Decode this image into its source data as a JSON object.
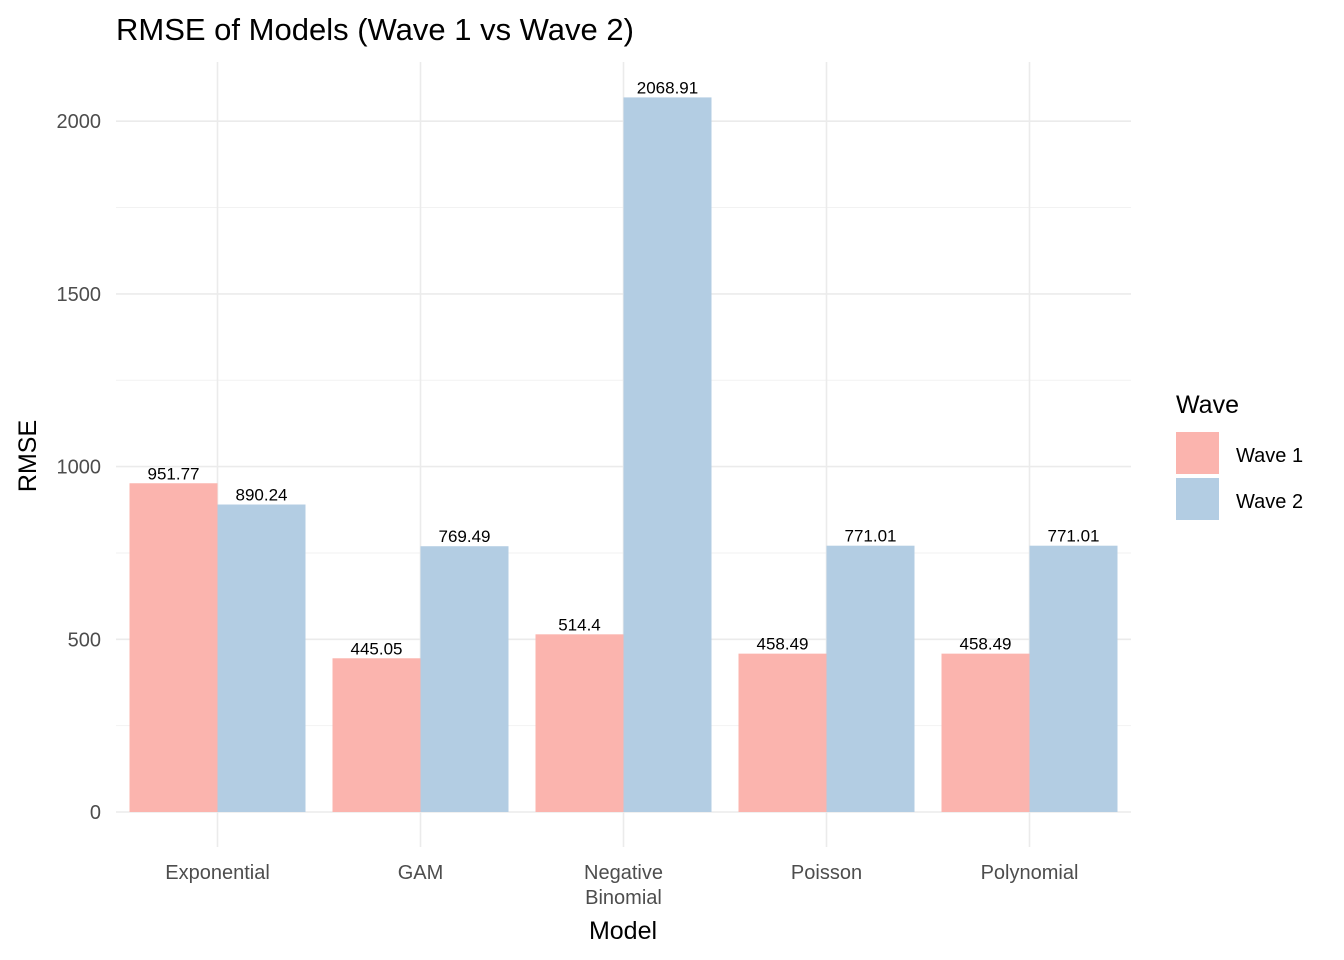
{
  "chart_data": {
    "type": "bar",
    "title": "RMSE of Models (Wave 1 vs Wave 2)",
    "xlabel": "Model",
    "ylabel": "RMSE",
    "categories": [
      "Exponential",
      "GAM",
      "Negative\nBinomial",
      "Poisson",
      "Polynomial"
    ],
    "series": [
      {
        "name": "Wave 1",
        "values": [
          951.77,
          445.05,
          514.4,
          458.49,
          458.49
        ],
        "labels": [
          "951.77",
          "445.05",
          "514.4",
          "458.49",
          "458.49"
        ],
        "color": "#fbb4ae"
      },
      {
        "name": "Wave 2",
        "values": [
          890.24,
          769.49,
          2068.91,
          771.01,
          771.01
        ],
        "labels": [
          "890.24",
          "769.49",
          "2068.91",
          "771.01",
          "771.01"
        ],
        "color": "#b3cde3"
      }
    ],
    "ylim": [
      -100,
      2200
    ],
    "yticks": [
      0,
      500,
      1000,
      1500,
      2000
    ],
    "ytick_labels": [
      "0",
      "500",
      "1000",
      "1500",
      "2000"
    ],
    "grid": true,
    "legend": {
      "title": "Wave",
      "position": "right"
    }
  }
}
